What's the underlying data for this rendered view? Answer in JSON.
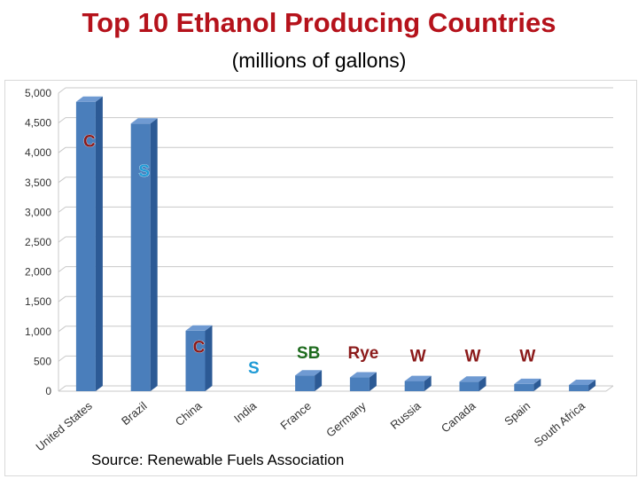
{
  "title": "Top 10 Ethanol Producing Countries",
  "subtitle": "(millions of gallons)",
  "source": "Source: Renewable Fuels Association",
  "colors": {
    "bar_front": "#4a7ebb",
    "bar_side": "#2c5a95",
    "bar_top": "#6f9ad2",
    "annotation_red": "#8b1a1a",
    "annotation_blue": "#1f9bd6",
    "annotation_green": "#1e6b1e"
  },
  "chart_data": {
    "type": "bar",
    "title": "",
    "xlabel": "",
    "ylabel": "",
    "ylim": [
      0,
      5000
    ],
    "yticks": [
      "0",
      "500",
      "1,000",
      "1,500",
      "2,000",
      "2,500",
      "3,000",
      "3,500",
      "4,000",
      "4,500",
      "5,000"
    ],
    "grid": true,
    "categories": [
      "United States",
      "Brazil",
      "China",
      "India",
      "France",
      "Germany",
      "Russia",
      "Canada",
      "Spain",
      "South Africa"
    ],
    "values": [
      4855,
      4490,
      1015,
      0,
      265,
      230,
      170,
      160,
      120,
      105
    ],
    "annotations": [
      {
        "category": "United States",
        "text": "C",
        "color": "annotation_red",
        "value": 4100
      },
      {
        "category": "Brazil",
        "text": "S",
        "color": "annotation_blue",
        "value": 3600
      },
      {
        "category": "China",
        "text": "C",
        "color": "annotation_red",
        "value": 650
      },
      {
        "category": "India",
        "text": "S",
        "color": "annotation_blue",
        "value": 300
      },
      {
        "category": "France",
        "text": "SB",
        "color": "annotation_green",
        "value": 550
      },
      {
        "category": "Germany",
        "text": "Rye",
        "color": "annotation_red",
        "value": 550
      },
      {
        "category": "Russia",
        "text": "W",
        "color": "annotation_red",
        "value": 500
      },
      {
        "category": "Canada",
        "text": "W",
        "color": "annotation_red",
        "value": 500
      },
      {
        "category": "Spain",
        "text": "W",
        "color": "annotation_red",
        "value": 500
      }
    ]
  }
}
